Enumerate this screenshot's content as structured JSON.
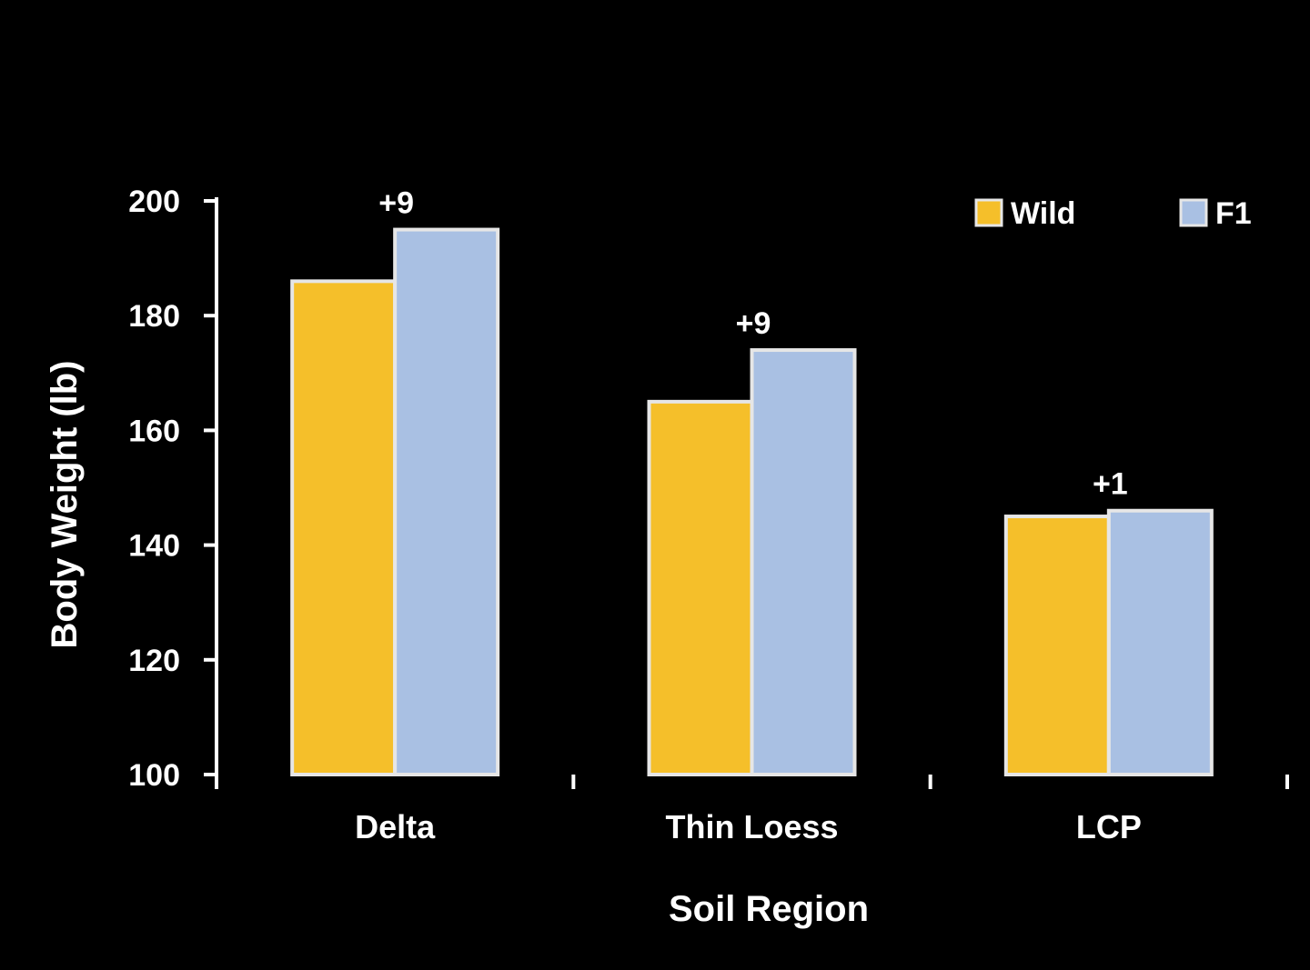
{
  "chart_data": {
    "type": "bar",
    "title": "",
    "xlabel": "Soil Region",
    "ylabel": "Body Weight (lb)",
    "categories": [
      "Delta",
      "Thin Loess",
      "LCP"
    ],
    "series": [
      {
        "name": "Wild",
        "values": [
          186,
          165,
          145
        ]
      },
      {
        "name": "F1",
        "values": [
          195,
          174,
          146
        ]
      }
    ],
    "annotations": [
      "+9",
      "+9",
      "+1"
    ],
    "ylim": [
      100,
      200
    ],
    "yticks": [
      100,
      120,
      140,
      160,
      180,
      200
    ],
    "ytick_labels": [
      "100",
      "120",
      "140",
      "160",
      "180",
      "200"
    ],
    "grid": false,
    "legend_position": "top-right",
    "colors": {
      "Wild": "#f5bf2a",
      "F1": "#a9c0e3",
      "bar_edge": "#e6e6e6",
      "axis": "#ffffff",
      "background": "#000000"
    }
  }
}
